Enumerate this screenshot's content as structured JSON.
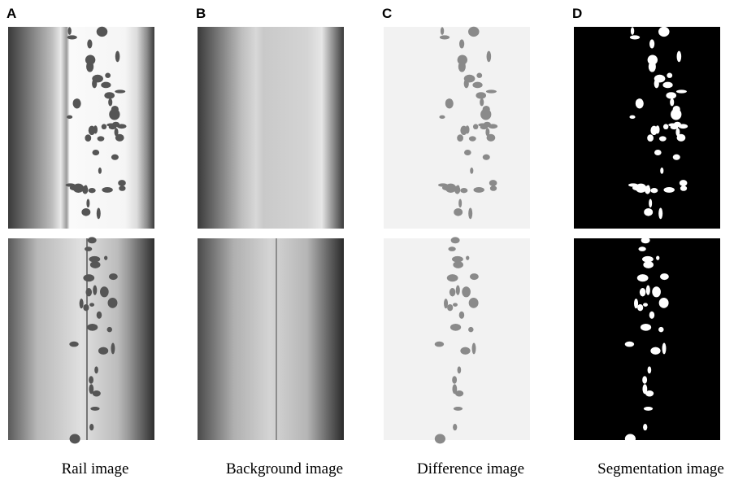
{
  "panels": [
    {
      "label": "A",
      "caption": "Rail image"
    },
    {
      "label": "B",
      "caption": "Background image"
    },
    {
      "label": "C",
      "caption": "Difference image"
    },
    {
      "label": "D",
      "caption": "Segmentation image"
    }
  ]
}
